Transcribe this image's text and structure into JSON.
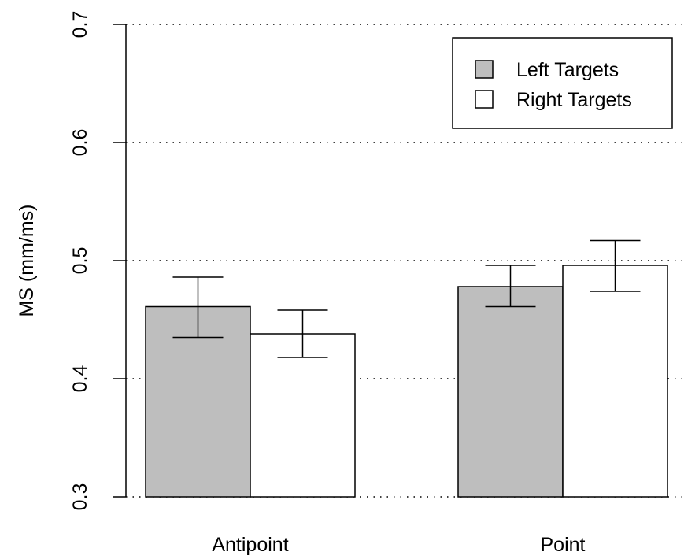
{
  "chart_data": {
    "type": "bar",
    "title": "",
    "xlabel": "",
    "ylabel": "MS (mm/ms)",
    "categories": [
      "Antipoint",
      "Point"
    ],
    "series": [
      {
        "name": "Left Targets",
        "values": [
          0.461,
          0.478
        ],
        "error_low": [
          0.435,
          0.461
        ],
        "error_high": [
          0.486,
          0.496
        ],
        "color": "#bebebe"
      },
      {
        "name": "Right Targets",
        "values": [
          0.438,
          0.496
        ],
        "error_low": [
          0.418,
          0.474
        ],
        "error_high": [
          0.458,
          0.517
        ],
        "color": "#ffffff"
      }
    ],
    "ylim": [
      0.3,
      0.7
    ],
    "y_ticks": [
      "0.3",
      "0.4",
      "0.5",
      "0.6",
      "0.7"
    ],
    "grid": "horizontal dotted",
    "legend_position": "top-right"
  }
}
